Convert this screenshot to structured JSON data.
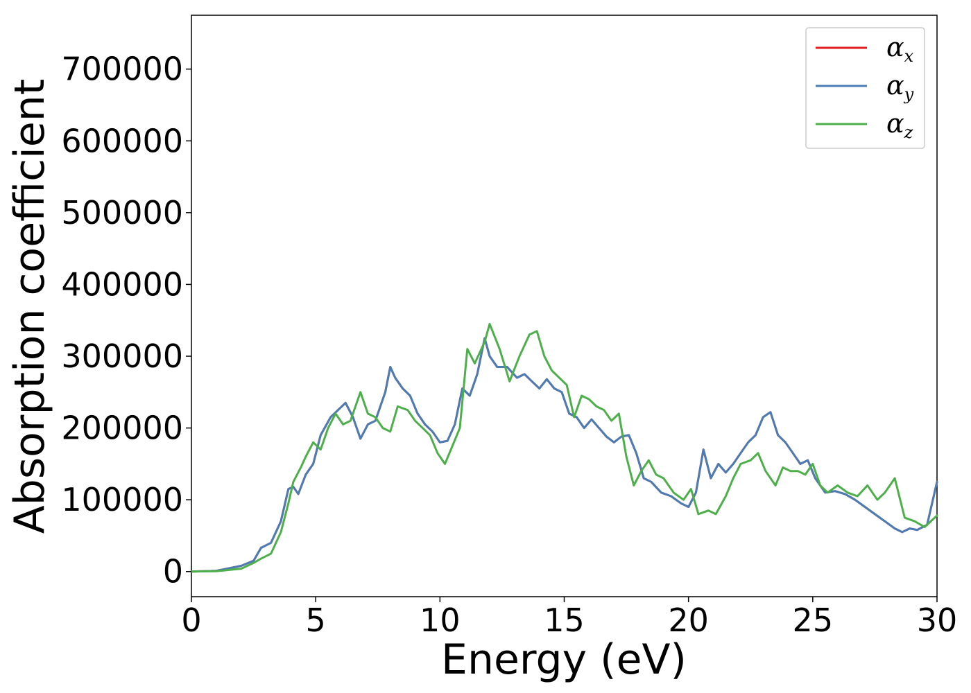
{
  "chart_data": {
    "type": "line",
    "title": "",
    "xlabel": "Energy (eV)",
    "ylabel": "Absorption coefficient",
    "xlim": [
      0,
      30
    ],
    "ylim": [
      -35000,
      775000
    ],
    "x_ticks": [
      0,
      5,
      10,
      15,
      20,
      25,
      30
    ],
    "x_tick_labels": [
      "0",
      "5",
      "10",
      "15",
      "20",
      "25",
      "30"
    ],
    "y_ticks": [
      0,
      100000,
      200000,
      300000,
      400000,
      500000,
      600000,
      700000
    ],
    "y_tick_labels": [
      "0",
      "100000",
      "200000",
      "300000",
      "400000",
      "500000",
      "600000",
      "700000"
    ],
    "grid": false,
    "legend_position": "top-right",
    "colors": {
      "alpha_x": "#e41a1c",
      "alpha_y": "#4a7db5",
      "alpha_z": "#4daf4a"
    },
    "series": [
      {
        "name": "α_x",
        "name_main": "α",
        "name_sub": "x",
        "color": "#e41a1c",
        "x": [
          0,
          1,
          2,
          2.5,
          2.8,
          3.2,
          3.6,
          3.9,
          4.1,
          4.3,
          4.6,
          4.9,
          5.2,
          5.6,
          5.9,
          6.2,
          6.5,
          6.8,
          7.1,
          7.4,
          7.8,
          8.0,
          8.2,
          8.5,
          8.8,
          9.1,
          9.4,
          9.7,
          10.0,
          10.3,
          10.6,
          10.9,
          11.2,
          11.5,
          11.8,
          12.0,
          12.3,
          12.7,
          13.1,
          13.4,
          13.7,
          14.0,
          14.3,
          14.6,
          14.9,
          15.2,
          15.5,
          15.8,
          16.1,
          16.4,
          16.7,
          17.0,
          17.3,
          17.6,
          17.9,
          18.2,
          18.5,
          18.9,
          19.3,
          19.7,
          20.0,
          20.3,
          20.6,
          20.9,
          21.2,
          21.5,
          21.8,
          22.1,
          22.4,
          22.7,
          23.0,
          23.3,
          23.6,
          23.9,
          24.2,
          24.5,
          24.8,
          25.1,
          25.5,
          25.9,
          26.3,
          26.7,
          27.1,
          27.5,
          27.9,
          28.3,
          28.6,
          28.9,
          29.2,
          29.6,
          30.0
        ],
        "values": [
          0,
          1000,
          8000,
          15000,
          33000,
          40000,
          70000,
          115000,
          118000,
          108000,
          135000,
          150000,
          190000,
          215000,
          225000,
          235000,
          215000,
          185000,
          205000,
          210000,
          250000,
          285000,
          270000,
          255000,
          245000,
          220000,
          205000,
          195000,
          180000,
          182000,
          205000,
          255000,
          245000,
          275000,
          325000,
          300000,
          285000,
          285000,
          270000,
          275000,
          265000,
          255000,
          268000,
          255000,
          250000,
          220000,
          215000,
          200000,
          212000,
          200000,
          188000,
          180000,
          188000,
          190000,
          165000,
          130000,
          125000,
          110000,
          105000,
          95000,
          90000,
          110000,
          170000,
          130000,
          150000,
          138000,
          150000,
          165000,
          180000,
          190000,
          215000,
          222000,
          190000,
          180000,
          165000,
          150000,
          155000,
          130000,
          110000,
          112000,
          108000,
          100000,
          90000,
          80000,
          70000,
          60000,
          55000,
          60000,
          58000,
          65000,
          125000
        ]
      },
      {
        "name": "α_y",
        "name_main": "α",
        "name_sub": "y",
        "color": "#4a7db5",
        "x": [
          0,
          1,
          2,
          2.5,
          2.8,
          3.2,
          3.6,
          3.9,
          4.1,
          4.3,
          4.6,
          4.9,
          5.2,
          5.6,
          5.9,
          6.2,
          6.5,
          6.8,
          7.1,
          7.4,
          7.8,
          8.0,
          8.2,
          8.5,
          8.8,
          9.1,
          9.4,
          9.7,
          10.0,
          10.3,
          10.6,
          10.9,
          11.2,
          11.5,
          11.8,
          12.0,
          12.3,
          12.7,
          13.1,
          13.4,
          13.7,
          14.0,
          14.3,
          14.6,
          14.9,
          15.2,
          15.5,
          15.8,
          16.1,
          16.4,
          16.7,
          17.0,
          17.3,
          17.6,
          17.9,
          18.2,
          18.5,
          18.9,
          19.3,
          19.7,
          20.0,
          20.3,
          20.6,
          20.9,
          21.2,
          21.5,
          21.8,
          22.1,
          22.4,
          22.7,
          23.0,
          23.3,
          23.6,
          23.9,
          24.2,
          24.5,
          24.8,
          25.1,
          25.5,
          25.9,
          26.3,
          26.7,
          27.1,
          27.5,
          27.9,
          28.3,
          28.6,
          28.9,
          29.2,
          29.6,
          30.0
        ],
        "values": [
          0,
          1000,
          8000,
          15000,
          33000,
          40000,
          70000,
          115000,
          118000,
          108000,
          135000,
          150000,
          190000,
          215000,
          225000,
          235000,
          215000,
          185000,
          205000,
          210000,
          250000,
          285000,
          270000,
          255000,
          245000,
          220000,
          205000,
          195000,
          180000,
          182000,
          205000,
          255000,
          245000,
          275000,
          325000,
          300000,
          285000,
          285000,
          270000,
          275000,
          265000,
          255000,
          268000,
          255000,
          250000,
          220000,
          215000,
          200000,
          212000,
          200000,
          188000,
          180000,
          188000,
          190000,
          165000,
          130000,
          125000,
          110000,
          105000,
          95000,
          90000,
          110000,
          170000,
          130000,
          150000,
          138000,
          150000,
          165000,
          180000,
          190000,
          215000,
          222000,
          190000,
          180000,
          165000,
          150000,
          155000,
          130000,
          110000,
          112000,
          108000,
          100000,
          90000,
          80000,
          70000,
          60000,
          55000,
          60000,
          58000,
          65000,
          125000
        ]
      },
      {
        "name": "α_z",
        "name_main": "α",
        "name_sub": "z",
        "color": "#4daf4a",
        "x": [
          0,
          1,
          2,
          2.5,
          2.8,
          3.2,
          3.6,
          3.9,
          4.1,
          4.4,
          4.6,
          4.9,
          5.2,
          5.5,
          5.8,
          6.1,
          6.4,
          6.8,
          7.1,
          7.4,
          7.7,
          8.0,
          8.3,
          8.7,
          9.0,
          9.3,
          9.6,
          9.9,
          10.2,
          10.5,
          10.8,
          11.1,
          11.4,
          11.8,
          12.0,
          12.4,
          12.8,
          13.2,
          13.6,
          13.9,
          14.2,
          14.5,
          14.8,
          15.1,
          15.4,
          15.7,
          16.0,
          16.3,
          16.6,
          16.9,
          17.2,
          17.5,
          17.8,
          18.1,
          18.4,
          18.7,
          19.0,
          19.4,
          19.8,
          20.1,
          20.4,
          20.8,
          21.1,
          21.5,
          21.8,
          22.1,
          22.5,
          22.8,
          23.1,
          23.5,
          23.8,
          24.1,
          24.4,
          24.7,
          25.0,
          25.3,
          25.6,
          26.0,
          26.4,
          26.8,
          27.2,
          27.6,
          27.9,
          28.3,
          28.7,
          29.1,
          29.5,
          30.0
        ],
        "values": [
          0,
          500,
          4000,
          12000,
          18000,
          25000,
          55000,
          95000,
          125000,
          145000,
          160000,
          180000,
          170000,
          200000,
          220000,
          205000,
          210000,
          250000,
          220000,
          215000,
          200000,
          195000,
          230000,
          225000,
          210000,
          200000,
          190000,
          165000,
          150000,
          175000,
          200000,
          310000,
          290000,
          320000,
          345000,
          310000,
          265000,
          300000,
          330000,
          335000,
          300000,
          280000,
          270000,
          260000,
          215000,
          245000,
          240000,
          230000,
          225000,
          210000,
          220000,
          160000,
          120000,
          140000,
          155000,
          135000,
          130000,
          110000,
          100000,
          115000,
          80000,
          85000,
          80000,
          105000,
          130000,
          150000,
          155000,
          165000,
          140000,
          120000,
          145000,
          140000,
          140000,
          135000,
          150000,
          120000,
          110000,
          120000,
          110000,
          105000,
          120000,
          100000,
          110000,
          130000,
          75000,
          70000,
          62000,
          78000
        ]
      }
    ]
  }
}
